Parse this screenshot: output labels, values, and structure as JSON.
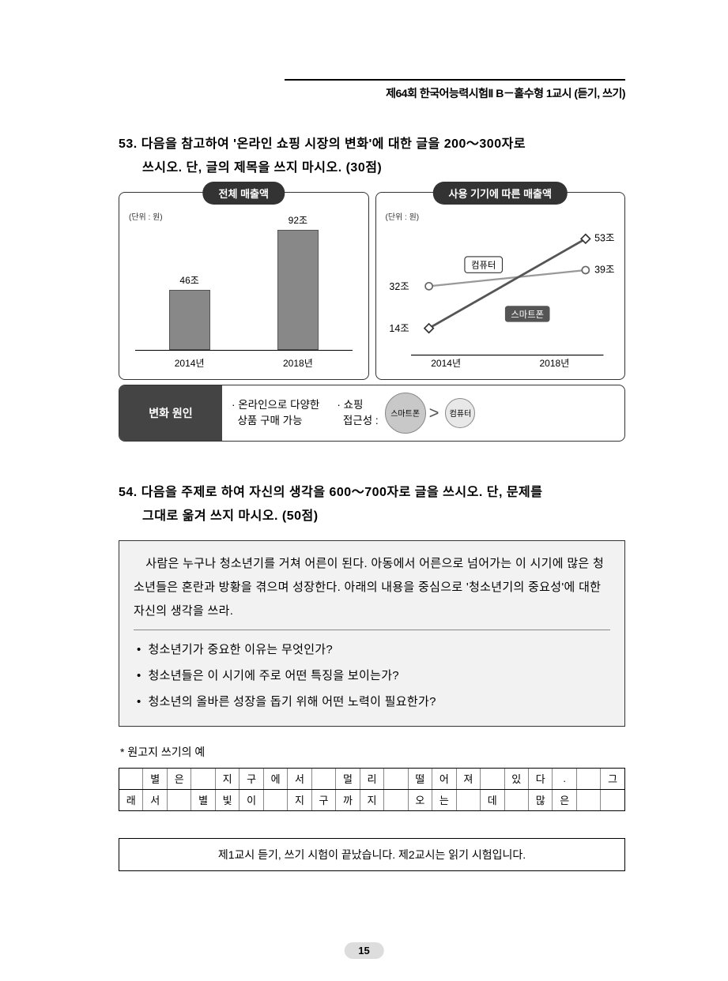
{
  "header": {
    "text": "제64회  한국어능력시험Ⅱ B－홀수형 1교시 (듣기, 쓰기)"
  },
  "q53": {
    "number": "53.",
    "prompt_l1": "다음을 참고하여 '온라인 쇼핑 시장의 변화'에 대한 글을 200～300자로",
    "prompt_l2": "쓰시오. 단, 글의 제목을 쓰지 마시오. (30점)",
    "chart_left": {
      "title": "전체 매출액",
      "unit": "(단위 : 원)",
      "type": "bar",
      "categories": [
        "2014년",
        "2018년"
      ],
      "values": [
        46,
        92
      ],
      "value_labels": [
        "46조",
        "92조"
      ],
      "bar_colors": [
        "#888888",
        "#888888"
      ],
      "ylim": [
        0,
        100
      ],
      "background": "#ffffff"
    },
    "chart_right": {
      "title": "사용 기기에 따른 매출액",
      "unit": "(단위 : 원)",
      "type": "line",
      "categories": [
        "2014년",
        "2018년"
      ],
      "series": [
        {
          "name": "컴퓨터",
          "values": [
            32,
            39
          ],
          "value_labels": [
            "32조",
            "39조"
          ],
          "marker": "circle",
          "color": "#999999"
        },
        {
          "name": "스마트폰",
          "values": [
            14,
            53
          ],
          "value_labels": [
            "14조",
            "53조"
          ],
          "marker": "diamond",
          "color": "#555555"
        }
      ],
      "legend_box_bg": "#ffffff",
      "legend_box_border": "#333333",
      "ylim": [
        0,
        60
      ]
    },
    "reason": {
      "label": "변화 원인",
      "item1": "· 온라인으로 다양한\n  상품 구매 가능",
      "item2_l1": "· 쇼핑",
      "item2_l2": "  접근성 :",
      "circle_big": "스마트폰",
      "circle_small": "컴퓨터"
    }
  },
  "q54": {
    "number": "54.",
    "prompt_l1": "다음을 주제로 하여 자신의 생각을 600～700자로 글을 쓰시오. 단, 문제를",
    "prompt_l2": "그대로 옮겨 쓰지 마시오. (50점)",
    "box_para": "　사람은 누구나 청소년기를 거쳐 어른이 된다. 아동에서 어른으로 넘어가는 이 시기에 많은 청소년들은 혼란과 방황을 겪으며 성장한다. 아래의 내용을 중심으로 '청소년기의 중요성'에 대한 자신의 생각을 쓰라.",
    "bullets": [
      "청소년기가 중요한 이유는 무엇인가?",
      "청소년들은 이 시기에 주로 어떤 특징을 보이는가?",
      "청소년의 올바른 성장을 돕기 위해 어떤 노력이 필요한가?"
    ]
  },
  "manuscript": {
    "label": "* 원고지 쓰기의 예",
    "row1": [
      "",
      "별",
      "은",
      "",
      "지",
      "구",
      "에",
      "서",
      "",
      "멀",
      "리",
      "",
      "떨",
      "어",
      "져",
      "",
      "있",
      "다",
      ".",
      "",
      "그"
    ],
    "row2": [
      "래",
      "서",
      "",
      "별",
      "빛",
      "이",
      "",
      "지",
      "구",
      "까",
      "지",
      "",
      "오",
      "는",
      "",
      "데",
      "",
      "많",
      "은",
      "",
      ""
    ]
  },
  "footer": {
    "text": "제1교시 듣기, 쓰기 시험이 끝났습니다. 제2교시는 읽기 시험입니다."
  },
  "page": "15"
}
